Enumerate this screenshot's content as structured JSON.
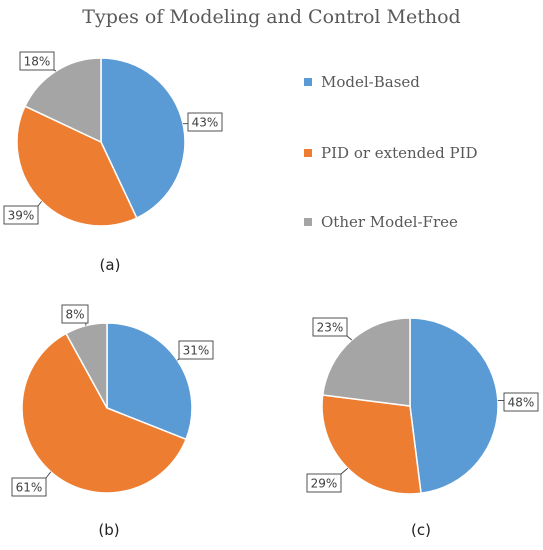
{
  "title": "Types of Modeling and Control Method",
  "legend": [
    {
      "label": "Model-Based",
      "color": "#5b9bd5"
    },
    {
      "label": "PID or extended PID",
      "color": "#ed7d31"
    },
    {
      "label": "Other Model-Free",
      "color": "#a5a5a5"
    }
  ],
  "panel_labels": [
    "(a)",
    "(b)",
    "(c)"
  ],
  "chart_data": [
    {
      "type": "pie",
      "panel": "(a)",
      "categories": [
        "Model-Based",
        "PID or extended PID",
        "Other Model-Free"
      ],
      "values": [
        43,
        39,
        18
      ],
      "labels": [
        "43%",
        "39%",
        "18%"
      ]
    },
    {
      "type": "pie",
      "panel": "(b)",
      "categories": [
        "Model-Based",
        "PID or extended PID",
        "Other Model-Free"
      ],
      "values": [
        31,
        61,
        8
      ],
      "labels": [
        "31%",
        "61%",
        "8%"
      ]
    },
    {
      "type": "pie",
      "panel": "(c)",
      "categories": [
        "Model-Based",
        "PID or extended PID",
        "Other Model-Free"
      ],
      "values": [
        48,
        29,
        23
      ],
      "labels": [
        "48%",
        "29%",
        "23%"
      ]
    }
  ]
}
